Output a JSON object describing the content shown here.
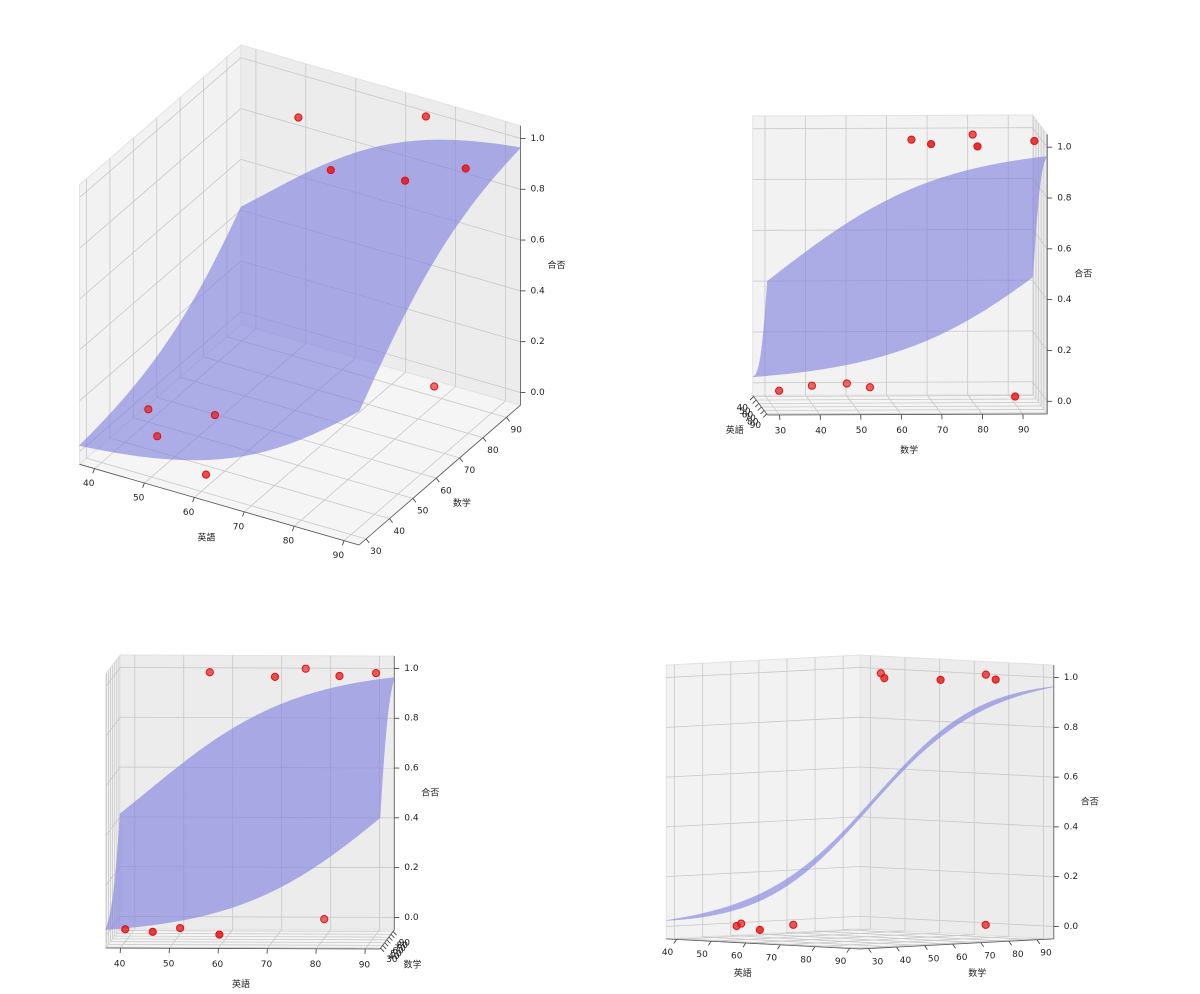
{
  "chart_data": [
    {
      "type": "scatter3d",
      "xlabel": "英語",
      "ylabel": "数学",
      "zlabel": "合否",
      "x": [
        40,
        46,
        51,
        60,
        79,
        56,
        70,
        75,
        83,
        90
      ],
      "y": [
        50,
        41,
        55,
        32,
        89,
        80,
        64,
        94,
        68,
        79
      ],
      "z": [
        0,
        0,
        0,
        0,
        0,
        1,
        1,
        1,
        1,
        1
      ],
      "color": "#e01010",
      "surface_color": "#8080e0",
      "xlim": [
        37,
        93
      ],
      "ylim": [
        27,
        96
      ],
      "zlim": [
        -0.05,
        1.05
      ],
      "xticks": [
        40,
        50,
        60,
        70,
        80,
        90
      ],
      "yticks": [
        30,
        40,
        50,
        60,
        70,
        80,
        90
      ],
      "zticks": [
        {
          "value": 0,
          "label": "0.0"
        },
        0.2,
        0.4,
        0.6,
        0.8,
        {
          "value": 1,
          "label": "1.0"
        }
      ]
    },
    {
      "type": "scatter3d",
      "xlabel": "英語",
      "ylabel": "数学",
      "zlabel": "合否",
      "x": [
        40,
        46,
        51,
        60,
        79,
        56,
        70,
        75,
        83,
        90
      ],
      "y": [
        50,
        41,
        55,
        32,
        89,
        80,
        64,
        94,
        68,
        79
      ],
      "z": [
        0,
        0,
        0,
        0,
        0,
        1,
        1,
        1,
        1,
        1
      ],
      "color": "#e01010",
      "surface_color": "#8080e0",
      "xlim": [
        37,
        93
      ],
      "ylim": [
        27,
        96
      ],
      "zlim": [
        -0.05,
        1.05
      ],
      "xticks": [
        40,
        50,
        60,
        70,
        80,
        90
      ],
      "yticks": [
        30,
        40,
        50,
        60,
        70,
        80,
        90
      ],
      "zticks": [
        {
          "value": 0,
          "label": "0.0"
        },
        0.2,
        0.4,
        0.6,
        0.8,
        {
          "value": 1,
          "label": "1.0"
        }
      ]
    },
    {
      "type": "scatter3d",
      "xlabel": "英語",
      "ylabel": "数学",
      "zlabel": "合否",
      "x": [
        40,
        46,
        51,
        60,
        79,
        56,
        70,
        75,
        83,
        90
      ],
      "y": [
        50,
        41,
        55,
        32,
        89,
        80,
        64,
        94,
        68,
        79
      ],
      "z": [
        0,
        0,
        0,
        0,
        0,
        1,
        1,
        1,
        1,
        1
      ],
      "color": "#e01010",
      "surface_color": "#8080e0",
      "xlim": [
        37,
        93
      ],
      "ylim": [
        27,
        96
      ],
      "zlim": [
        -0.05,
        1.05
      ],
      "xticks": [
        40,
        50,
        60,
        70,
        80,
        90
      ],
      "yticks": [
        30,
        40,
        50,
        60,
        70,
        80,
        90
      ],
      "zticks": [
        {
          "value": 0,
          "label": "0.0"
        },
        0.2,
        0.4,
        0.6,
        0.8,
        {
          "value": 1,
          "label": "1.0"
        }
      ]
    },
    {
      "type": "scatter3d",
      "xlabel": "英語",
      "ylabel": "数学",
      "zlabel": "合否",
      "x": [
        40,
        46,
        51,
        60,
        79,
        56,
        70,
        75,
        83,
        90
      ],
      "y": [
        50,
        41,
        55,
        32,
        89,
        80,
        64,
        94,
        68,
        79
      ],
      "z": [
        0,
        0,
        0,
        0,
        0,
        1,
        1,
        1,
        1,
        1
      ],
      "color": "#e01010",
      "surface_color": "#8080e0",
      "xlim": [
        37,
        93
      ],
      "ylim": [
        27,
        96
      ],
      "zlim": [
        -0.05,
        1.05
      ],
      "xticks": [
        40,
        50,
        60,
        70,
        80,
        90
      ],
      "yticks": [
        30,
        40,
        50,
        60,
        70,
        80,
        90
      ],
      "zticks": [
        {
          "value": 0,
          "label": "0.0"
        },
        0.2,
        0.4,
        0.6,
        0.8,
        {
          "value": 1,
          "label": "1.0"
        }
      ]
    }
  ]
}
